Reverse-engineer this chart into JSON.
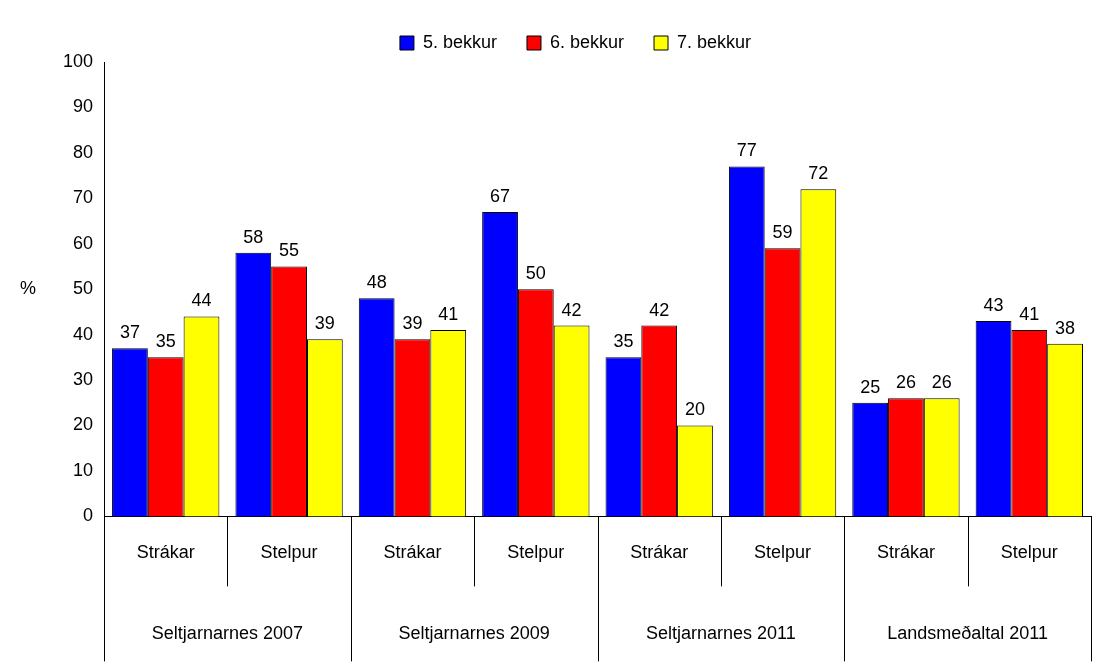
{
  "chart_data": {
    "type": "bar",
    "ylabel": "%",
    "categories": [
      "Strákar",
      "Stelpur",
      "Strákar",
      "Stelpur",
      "Strákar",
      "Stelpur",
      "Strákar",
      "Stelpur"
    ],
    "series": [
      {
        "name": "5. bekkur",
        "color": "#0000ff",
        "values": [
          37,
          58,
          48,
          67,
          35,
          77,
          25,
          43
        ]
      },
      {
        "name": "6. bekkur",
        "color": "#ff0000",
        "values": [
          35,
          55,
          39,
          50,
          42,
          59,
          26,
          41
        ]
      },
      {
        "name": "7. bekkur",
        "color": "#ffff00",
        "values": [
          44,
          39,
          41,
          42,
          20,
          72,
          26,
          38
        ]
      }
    ],
    "annotations": [
      "Seltjarnarnes 2007",
      "Seltjarnarnes 2009",
      "Seltjarnarnes 2011",
      "Landsmeðaltal 2011"
    ],
    "ylim": [
      0,
      100
    ],
    "yticks": [
      0,
      10,
      20,
      30,
      40,
      50,
      60,
      70,
      80,
      90,
      100
    ],
    "grid": false,
    "legend": "top",
    "data_labels": true
  }
}
